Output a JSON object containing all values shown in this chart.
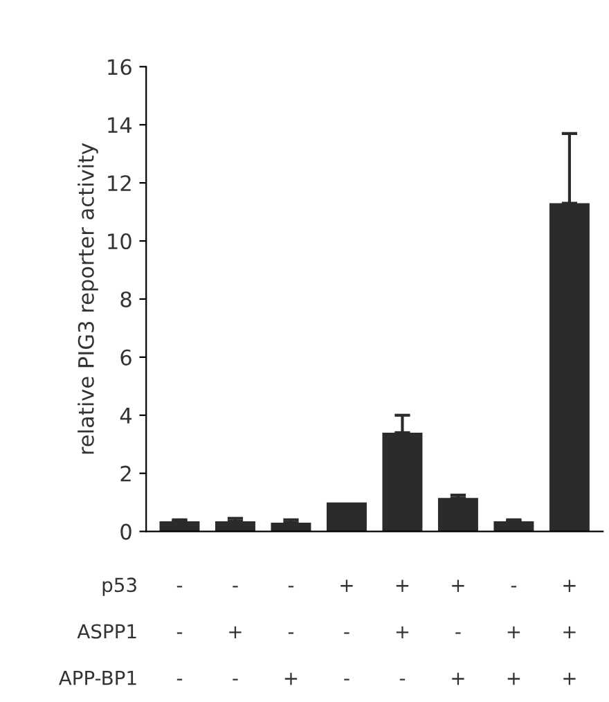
{
  "chart_data": {
    "type": "bar",
    "ylabel": "relative PIG3 reporter activity",
    "categories": [
      null,
      null,
      null,
      null,
      null,
      null,
      null,
      null
    ],
    "values": [
      0.35,
      0.35,
      0.3,
      1.0,
      3.4,
      1.15,
      0.35,
      11.3
    ],
    "errors": [
      [
        0.35,
        0.4
      ],
      [
        0.35,
        0.45
      ],
      [
        0.3,
        0.4
      ],
      null,
      [
        3.4,
        4.0
      ],
      [
        1.15,
        1.25
      ],
      [
        0.35,
        0.4
      ],
      [
        11.3,
        13.7
      ]
    ],
    "color": "#2b2b2b",
    "ylim": [
      0,
      16
    ],
    "yticks": [
      0,
      2,
      4,
      6,
      8,
      10,
      12,
      14,
      16
    ],
    "grid": false,
    "annotations": [
      "p53",
      "-",
      "-",
      "-",
      "+",
      "+",
      "+",
      "-",
      "+",
      "ASPP1",
      "-",
      "+",
      "-",
      "-",
      "+",
      "-",
      "+",
      "+",
      "APP-BP1",
      "-",
      "-",
      "+",
      "-",
      "-",
      "+",
      "+",
      "+"
    ]
  }
}
